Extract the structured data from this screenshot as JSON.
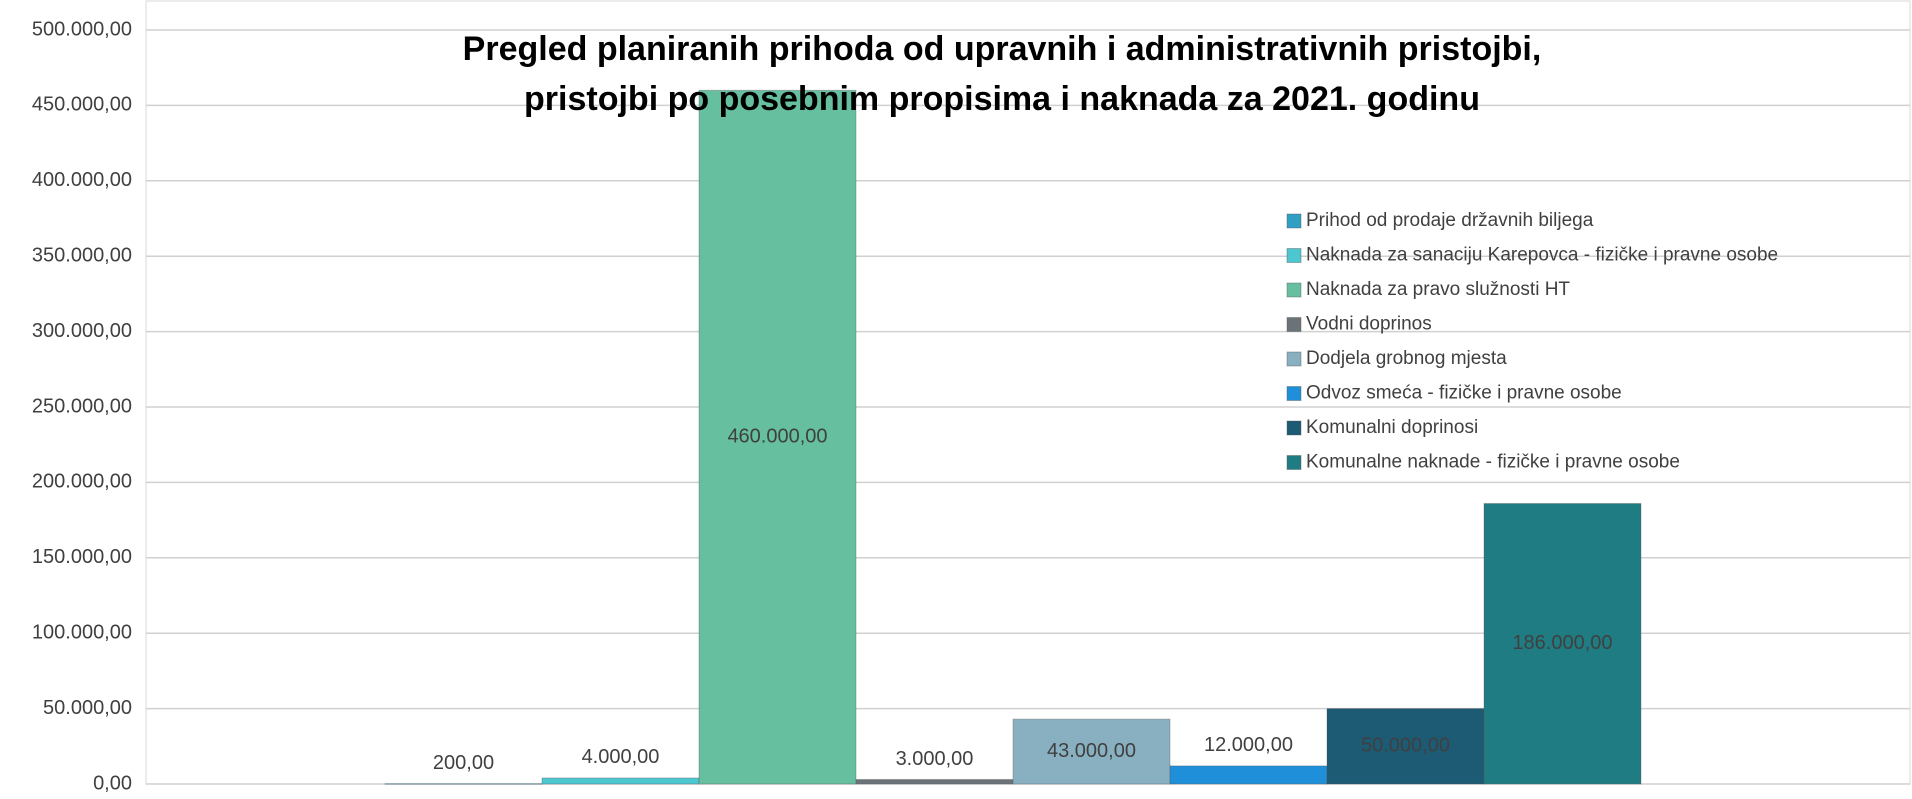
{
  "chart_data": {
    "type": "bar",
    "title": "Pregled planiranih prihoda od upravnih i administrativnih pristojbi,",
    "subtitle": "pristojbi po posebnim propisima i naknada za 2021. godinu",
    "categories": [
      null
    ],
    "series": [
      {
        "name": "Prihod od prodaje državnih biljega",
        "color": "#2f9fc4",
        "values": [
          200
        ],
        "value_labels": [
          "200,00"
        ]
      },
      {
        "name": "Naknada za sanaciju Karepovca - fizičke i pravne osobe",
        "color": "#4cc6cf",
        "values": [
          4000
        ],
        "value_labels": [
          "4.000,00"
        ]
      },
      {
        "name": "Naknada za pravo služnosti HT",
        "color": "#66bf9f",
        "values": [
          460000
        ],
        "value_labels": [
          "460.000,00"
        ]
      },
      {
        "name": "Vodni doprinos",
        "color": "#6b7378",
        "values": [
          3000
        ],
        "value_labels": [
          "3.000,00"
        ]
      },
      {
        "name": "Dodjela grobnog mjesta",
        "color": "#88b0c0",
        "values": [
          43000
        ],
        "value_labels": [
          "43.000,00"
        ]
      },
      {
        "name": "Odvoz smeća - fizičke i pravne osobe",
        "color": "#1e8fd8",
        "values": [
          12000
        ],
        "value_labels": [
          "12.000,00"
        ]
      },
      {
        "name": "Komunalni doprinosi",
        "color": "#1d5a74",
        "values": [
          50000
        ],
        "value_labels": [
          "50.000,00"
        ]
      },
      {
        "name": "Komunalne naknade - fizičke i pravne osobe",
        "color": "#1f7c83",
        "values": [
          186000
        ],
        "value_labels": [
          "186.000,00"
        ]
      }
    ],
    "ylim": [
      0,
      500000
    ],
    "yticks": [
      {
        "value": 0,
        "label": "0,00"
      },
      {
        "value": 50000,
        "label": "50.000,00"
      },
      {
        "value": 100000,
        "label": "100.000,00"
      },
      {
        "value": 150000,
        "label": "150.000,00"
      },
      {
        "value": 200000,
        "label": "200.000,00"
      },
      {
        "value": 250000,
        "label": "250.000,00"
      },
      {
        "value": 300000,
        "label": "300.000,00"
      },
      {
        "value": 350000,
        "label": "350.000,00"
      },
      {
        "value": 400000,
        "label": "400.000,00"
      },
      {
        "value": 450000,
        "label": "450.000,00"
      },
      {
        "value": 500000,
        "label": "500.000,00"
      }
    ],
    "grid": true,
    "legend": "right"
  }
}
